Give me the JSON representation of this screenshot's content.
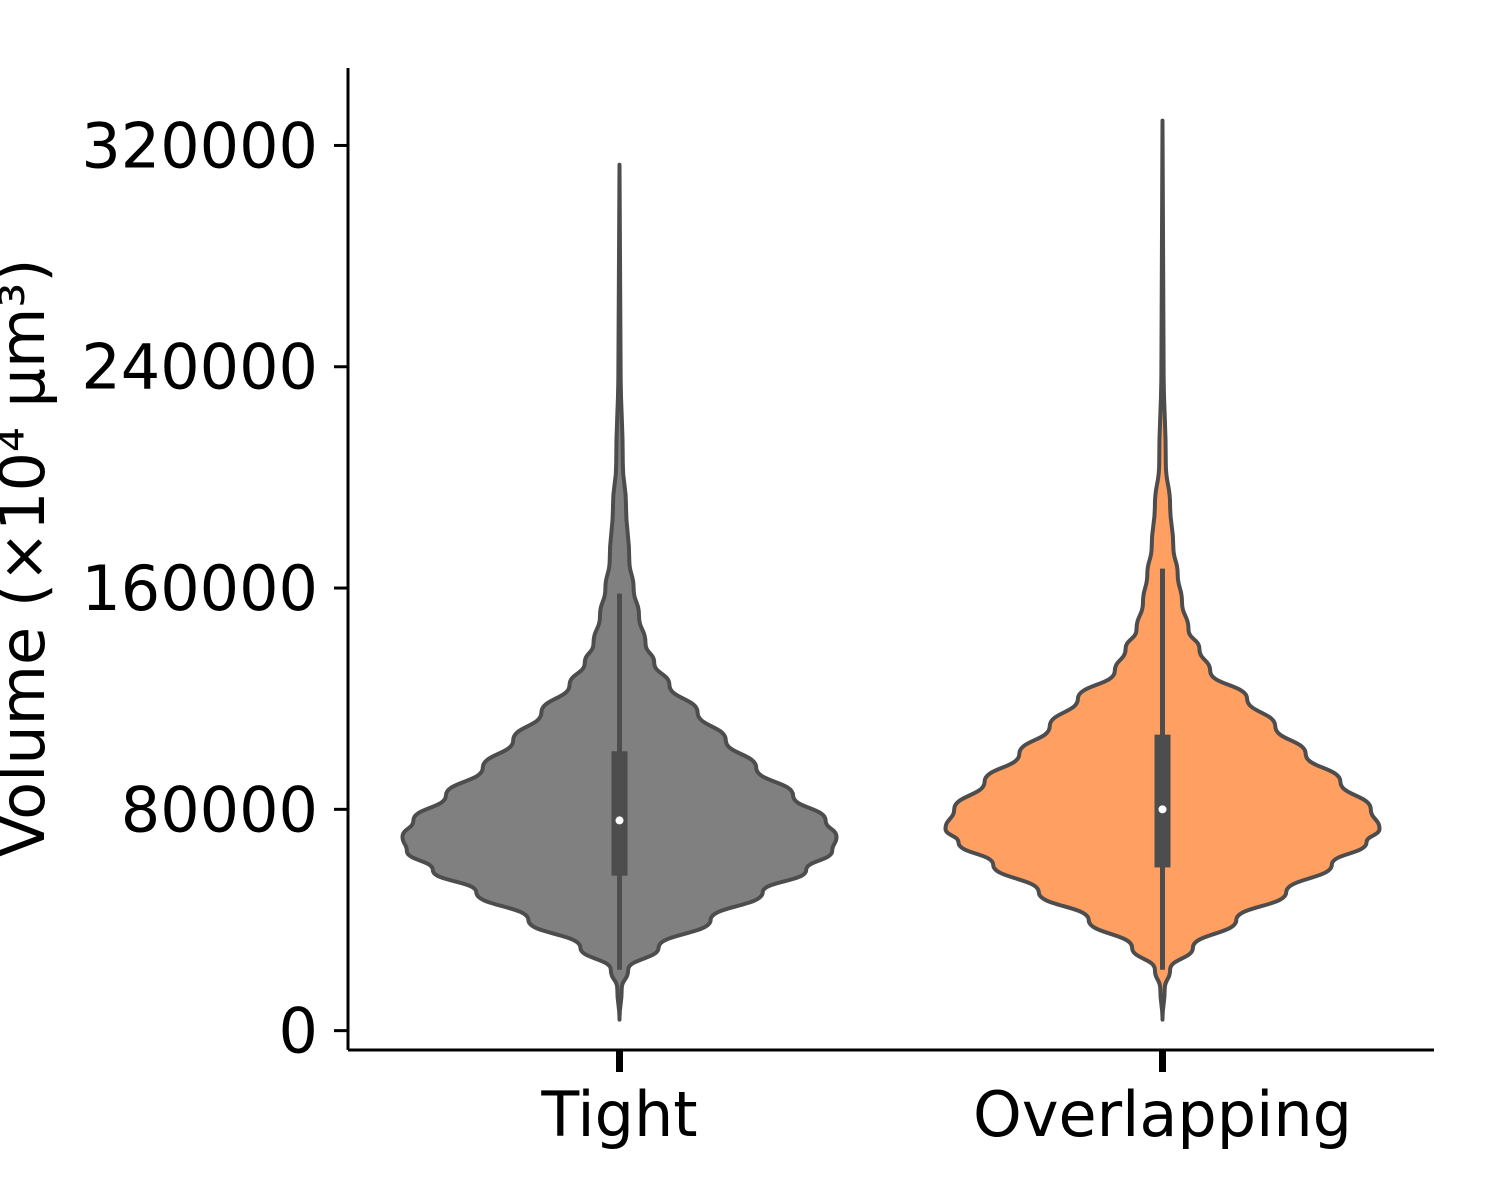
{
  "chart_data": {
    "type": "violin",
    "title": "",
    "xlabel": "",
    "ylabel": "Volume (×10⁴ μm³)",
    "ylim": [
      -7000,
      348000
    ],
    "yticks": [
      {
        "value": 0,
        "label": "0"
      },
      {
        "value": 80000,
        "label": "80000"
      },
      {
        "value": 160000,
        "label": "160000"
      },
      {
        "value": 240000,
        "label": "240000"
      },
      {
        "value": 320000,
        "label": "320000"
      }
    ],
    "categories": [
      "Tight",
      "Overlapping"
    ],
    "grid": false,
    "legend": "none",
    "series": [
      {
        "category": "Tight",
        "color": "#808080",
        "min": 4000,
        "max": 313000,
        "q1": 56000,
        "median": 76000,
        "q3": 101000,
        "whisker_low": 22000,
        "whisker_high": 158000,
        "density_profile": [
          [
            4000,
            0.0
          ],
          [
            15000,
            0.01
          ],
          [
            22000,
            0.04
          ],
          [
            30000,
            0.18
          ],
          [
            40000,
            0.42
          ],
          [
            50000,
            0.66
          ],
          [
            58000,
            0.86
          ],
          [
            65000,
            0.98
          ],
          [
            70000,
            1.0
          ],
          [
            76000,
            0.95
          ],
          [
            85000,
            0.8
          ],
          [
            95000,
            0.63
          ],
          [
            105000,
            0.49
          ],
          [
            115000,
            0.36
          ],
          [
            125000,
            0.23
          ],
          [
            133000,
            0.16
          ],
          [
            140000,
            0.12
          ],
          [
            150000,
            0.09
          ],
          [
            160000,
            0.065
          ],
          [
            170000,
            0.045
          ],
          [
            190000,
            0.03
          ],
          [
            205000,
            0.015
          ],
          [
            240000,
            0.005
          ],
          [
            313000,
            0.0
          ]
        ]
      },
      {
        "category": "Overlapping",
        "color": "#ffa062",
        "min": 4000,
        "max": 329000,
        "q1": 59000,
        "median": 80000,
        "q3": 107000,
        "whisker_low": 22000,
        "whisker_high": 167000,
        "density_profile": [
          [
            4000,
            0.0
          ],
          [
            15000,
            0.01
          ],
          [
            22000,
            0.035
          ],
          [
            30000,
            0.14
          ],
          [
            40000,
            0.34
          ],
          [
            50000,
            0.57
          ],
          [
            60000,
            0.78
          ],
          [
            68000,
            0.94
          ],
          [
            73000,
            1.0
          ],
          [
            80000,
            0.96
          ],
          [
            90000,
            0.82
          ],
          [
            100000,
            0.66
          ],
          [
            110000,
            0.52
          ],
          [
            120000,
            0.39
          ],
          [
            130000,
            0.22
          ],
          [
            138000,
            0.17
          ],
          [
            145000,
            0.12
          ],
          [
            155000,
            0.09
          ],
          [
            165000,
            0.07
          ],
          [
            175000,
            0.05
          ],
          [
            190000,
            0.035
          ],
          [
            205000,
            0.015
          ],
          [
            240000,
            0.005
          ],
          [
            329000,
            0.0
          ]
        ]
      }
    ]
  }
}
